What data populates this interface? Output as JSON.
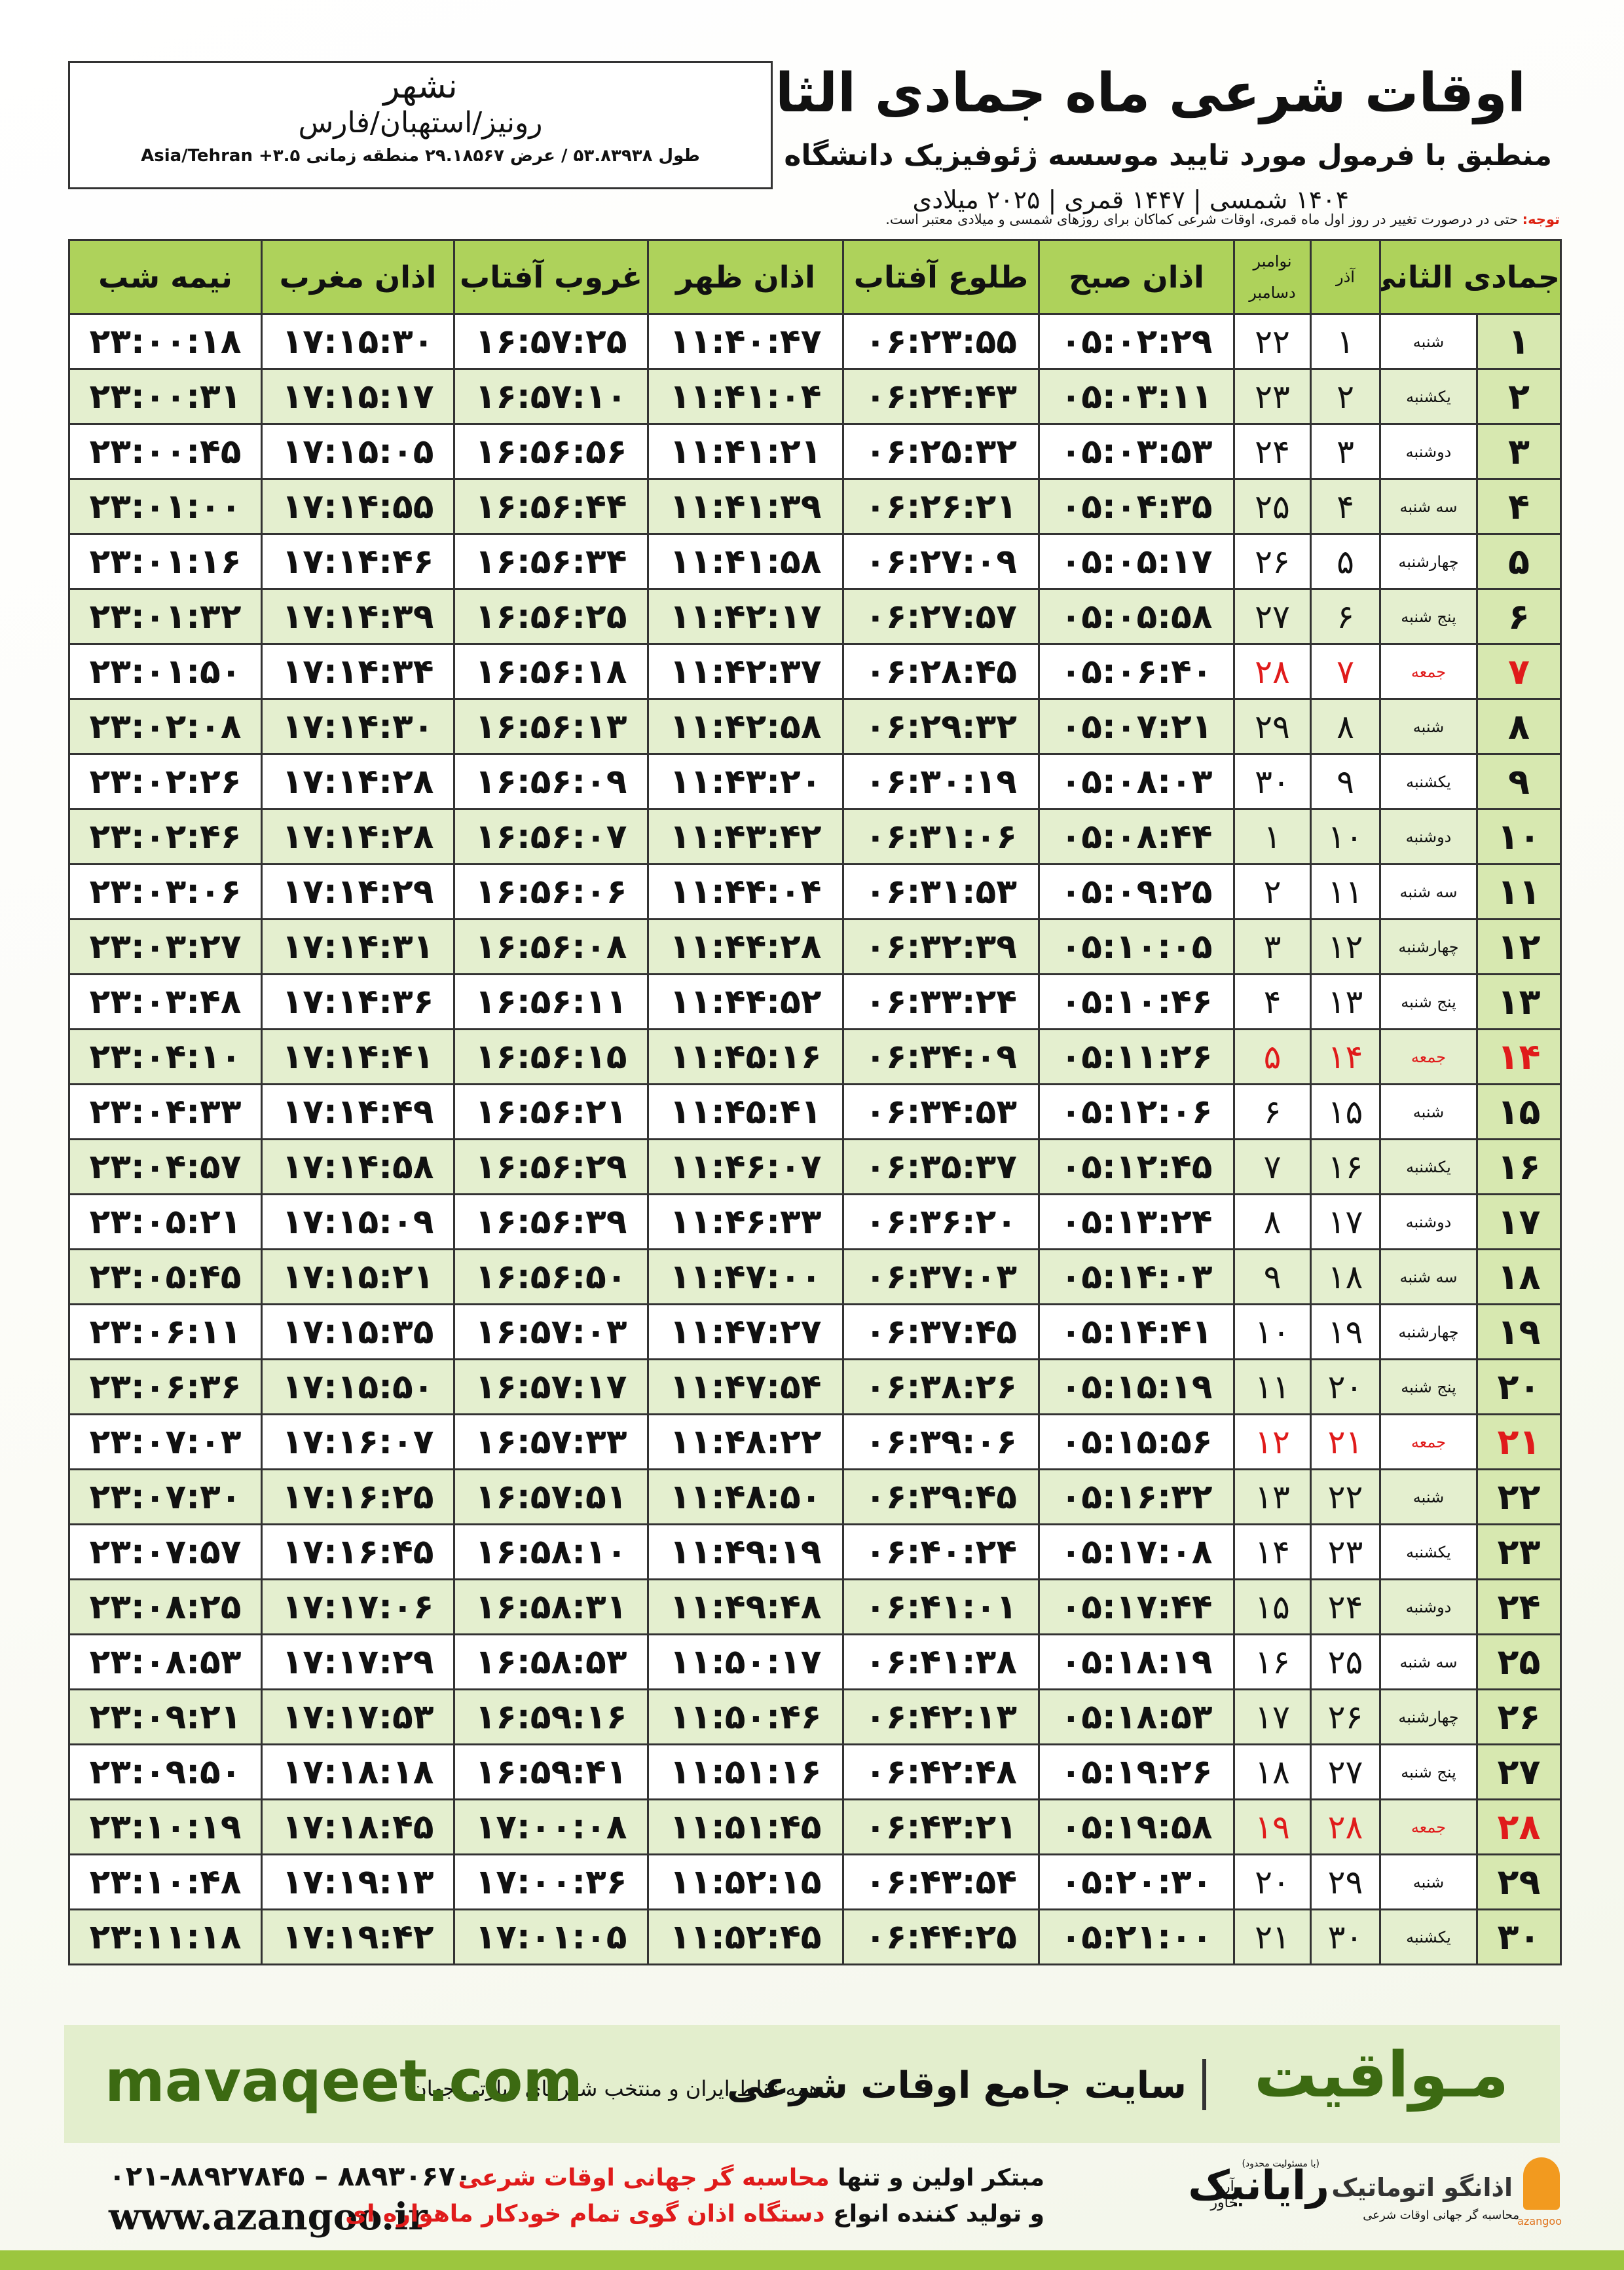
{
  "header": {
    "title": "اوقات شرعی ماه جمادی الثانی",
    "subtitle": "منطبق با فرمول مورد تایید موسسه ژئوفیزیک دانشگاه تهران",
    "dates": "۱۴۰۴ شمسی | ۱۴۴۷ قمری | ۲۰۲۵ میلادی"
  },
  "location": {
    "city": "نشهر",
    "region": "رونیز/استهبان/فارس",
    "coords": "طول ۵۳.۸۳۹۳۸ / عرض ۲۹.۱۸۵۶۷ منطقه زمانی ۳.۵+ Asia/Tehran"
  },
  "note": {
    "label": "توجه:",
    "text": "حتی در درصورت تغییر در روز اول ماه قمری، اوقات شرعی کماکان برای روزهای شمسی و میلادی معتبر است."
  },
  "table": {
    "headers": {
      "hijri": "جمادی الثانی",
      "shamsi": "آذر",
      "gregorian": [
        "نوامبر",
        "دسامبر"
      ],
      "times": [
        "اذان صبح",
        "طلوع آفتاب",
        "اذان ظهر",
        "غروب آفتاب",
        "اذان مغرب",
        "نیمه شب"
      ]
    },
    "rows": [
      [
        "۱",
        "شنبه",
        "۱",
        "۲۲",
        "۰۵:۰۲:۲۹",
        "۰۶:۲۳:۵۵",
        "۱۱:۴۰:۴۷",
        "۱۶:۵۷:۲۵",
        "۱۷:۱۵:۳۰",
        "۲۳:۰۰:۱۸"
      ],
      [
        "۲",
        "یکشنبه",
        "۲",
        "۲۳",
        "۰۵:۰۳:۱۱",
        "۰۶:۲۴:۴۳",
        "۱۱:۴۱:۰۴",
        "۱۶:۵۷:۱۰",
        "۱۷:۱۵:۱۷",
        "۲۳:۰۰:۳۱"
      ],
      [
        "۳",
        "دوشنبه",
        "۳",
        "۲۴",
        "۰۵:۰۳:۵۳",
        "۰۶:۲۵:۳۲",
        "۱۱:۴۱:۲۱",
        "۱۶:۵۶:۵۶",
        "۱۷:۱۵:۰۵",
        "۲۳:۰۰:۴۵"
      ],
      [
        "۴",
        "سه شنبه",
        "۴",
        "۲۵",
        "۰۵:۰۴:۳۵",
        "۰۶:۲۶:۲۱",
        "۱۱:۴۱:۳۹",
        "۱۶:۵۶:۴۴",
        "۱۷:۱۴:۵۵",
        "۲۳:۰۱:۰۰"
      ],
      [
        "۵",
        "چهارشنبه",
        "۵",
        "۲۶",
        "۰۵:۰۵:۱۷",
        "۰۶:۲۷:۰۹",
        "۱۱:۴۱:۵۸",
        "۱۶:۵۶:۳۴",
        "۱۷:۱۴:۴۶",
        "۲۳:۰۱:۱۶"
      ],
      [
        "۶",
        "پنج شنبه",
        "۶",
        "۲۷",
        "۰۵:۰۵:۵۸",
        "۰۶:۲۷:۵۷",
        "۱۱:۴۲:۱۷",
        "۱۶:۵۶:۲۵",
        "۱۷:۱۴:۳۹",
        "۲۳:۰۱:۳۲"
      ],
      [
        "۷",
        "جمعه",
        "۷",
        "۲۸",
        "۰۵:۰۶:۴۰",
        "۰۶:۲۸:۴۵",
        "۱۱:۴۲:۳۷",
        "۱۶:۵۶:۱۸",
        "۱۷:۱۴:۳۴",
        "۲۳:۰۱:۵۰"
      ],
      [
        "۸",
        "شنبه",
        "۸",
        "۲۹",
        "۰۵:۰۷:۲۱",
        "۰۶:۲۹:۳۲",
        "۱۱:۴۲:۵۸",
        "۱۶:۵۶:۱۳",
        "۱۷:۱۴:۳۰",
        "۲۳:۰۲:۰۸"
      ],
      [
        "۹",
        "یکشنبه",
        "۹",
        "۳۰",
        "۰۵:۰۸:۰۳",
        "۰۶:۳۰:۱۹",
        "۱۱:۴۳:۲۰",
        "۱۶:۵۶:۰۹",
        "۱۷:۱۴:۲۸",
        "۲۳:۰۲:۲۶"
      ],
      [
        "۱۰",
        "دوشنبه",
        "۱۰",
        "۱",
        "۰۵:۰۸:۴۴",
        "۰۶:۳۱:۰۶",
        "۱۱:۴۳:۴۲",
        "۱۶:۵۶:۰۷",
        "۱۷:۱۴:۲۸",
        "۲۳:۰۲:۴۶"
      ],
      [
        "۱۱",
        "سه شنبه",
        "۱۱",
        "۲",
        "۰۵:۰۹:۲۵",
        "۰۶:۳۱:۵۳",
        "۱۱:۴۴:۰۴",
        "۱۶:۵۶:۰۶",
        "۱۷:۱۴:۲۹",
        "۲۳:۰۳:۰۶"
      ],
      [
        "۱۲",
        "چهارشنبه",
        "۱۲",
        "۳",
        "۰۵:۱۰:۰۵",
        "۰۶:۳۲:۳۹",
        "۱۱:۴۴:۲۸",
        "۱۶:۵۶:۰۸",
        "۱۷:۱۴:۳۱",
        "۲۳:۰۳:۲۷"
      ],
      [
        "۱۳",
        "پنج شنبه",
        "۱۳",
        "۴",
        "۰۵:۱۰:۴۶",
        "۰۶:۳۳:۲۴",
        "۱۱:۴۴:۵۲",
        "۱۶:۵۶:۱۱",
        "۱۷:۱۴:۳۶",
        "۲۳:۰۳:۴۸"
      ],
      [
        "۱۴",
        "جمعه",
        "۱۴",
        "۵",
        "۰۵:۱۱:۲۶",
        "۰۶:۳۴:۰۹",
        "۱۱:۴۵:۱۶",
        "۱۶:۵۶:۱۵",
        "۱۷:۱۴:۴۱",
        "۲۳:۰۴:۱۰"
      ],
      [
        "۱۵",
        "شنبه",
        "۱۵",
        "۶",
        "۰۵:۱۲:۰۶",
        "۰۶:۳۴:۵۳",
        "۱۱:۴۵:۴۱",
        "۱۶:۵۶:۲۱",
        "۱۷:۱۴:۴۹",
        "۲۳:۰۴:۳۳"
      ],
      [
        "۱۶",
        "یکشنبه",
        "۱۶",
        "۷",
        "۰۵:۱۲:۴۵",
        "۰۶:۳۵:۳۷",
        "۱۱:۴۶:۰۷",
        "۱۶:۵۶:۲۹",
        "۱۷:۱۴:۵۸",
        "۲۳:۰۴:۵۷"
      ],
      [
        "۱۷",
        "دوشنبه",
        "۱۷",
        "۸",
        "۰۵:۱۳:۲۴",
        "۰۶:۳۶:۲۰",
        "۱۱:۴۶:۳۳",
        "۱۶:۵۶:۳۹",
        "۱۷:۱۵:۰۹",
        "۲۳:۰۵:۲۱"
      ],
      [
        "۱۸",
        "سه شنبه",
        "۱۸",
        "۹",
        "۰۵:۱۴:۰۳",
        "۰۶:۳۷:۰۳",
        "۱۱:۴۷:۰۰",
        "۱۶:۵۶:۵۰",
        "۱۷:۱۵:۲۱",
        "۲۳:۰۵:۴۵"
      ],
      [
        "۱۹",
        "چهارشنبه",
        "۱۹",
        "۱۰",
        "۰۵:۱۴:۴۱",
        "۰۶:۳۷:۴۵",
        "۱۱:۴۷:۲۷",
        "۱۶:۵۷:۰۳",
        "۱۷:۱۵:۳۵",
        "۲۳:۰۶:۱۱"
      ],
      [
        "۲۰",
        "پنج شنبه",
        "۲۰",
        "۱۱",
        "۰۵:۱۵:۱۹",
        "۰۶:۳۸:۲۶",
        "۱۱:۴۷:۵۴",
        "۱۶:۵۷:۱۷",
        "۱۷:۱۵:۵۰",
        "۲۳:۰۶:۳۶"
      ],
      [
        "۲۱",
        "جمعه",
        "۲۱",
        "۱۲",
        "۰۵:۱۵:۵۶",
        "۰۶:۳۹:۰۶",
        "۱۱:۴۸:۲۲",
        "۱۶:۵۷:۳۳",
        "۱۷:۱۶:۰۷",
        "۲۳:۰۷:۰۳"
      ],
      [
        "۲۲",
        "شنبه",
        "۲۲",
        "۱۳",
        "۰۵:۱۶:۳۲",
        "۰۶:۳۹:۴۵",
        "۱۱:۴۸:۵۰",
        "۱۶:۵۷:۵۱",
        "۱۷:۱۶:۲۵",
        "۲۳:۰۷:۳۰"
      ],
      [
        "۲۳",
        "یکشنبه",
        "۲۳",
        "۱۴",
        "۰۵:۱۷:۰۸",
        "۰۶:۴۰:۲۴",
        "۱۱:۴۹:۱۹",
        "۱۶:۵۸:۱۰",
        "۱۷:۱۶:۴۵",
        "۲۳:۰۷:۵۷"
      ],
      [
        "۲۴",
        "دوشنبه",
        "۲۴",
        "۱۵",
        "۰۵:۱۷:۴۴",
        "۰۶:۴۱:۰۱",
        "۱۱:۴۹:۴۸",
        "۱۶:۵۸:۳۱",
        "۱۷:۱۷:۰۶",
        "۲۳:۰۸:۲۵"
      ],
      [
        "۲۵",
        "سه شنبه",
        "۲۵",
        "۱۶",
        "۰۵:۱۸:۱۹",
        "۰۶:۴۱:۳۸",
        "۱۱:۵۰:۱۷",
        "۱۶:۵۸:۵۳",
        "۱۷:۱۷:۲۹",
        "۲۳:۰۸:۵۳"
      ],
      [
        "۲۶",
        "چهارشنبه",
        "۲۶",
        "۱۷",
        "۰۵:۱۸:۵۳",
        "۰۶:۴۲:۱۳",
        "۱۱:۵۰:۴۶",
        "۱۶:۵۹:۱۶",
        "۱۷:۱۷:۵۳",
        "۲۳:۰۹:۲۱"
      ],
      [
        "۲۷",
        "پنج شنبه",
        "۲۷",
        "۱۸",
        "۰۵:۱۹:۲۶",
        "۰۶:۴۲:۴۸",
        "۱۱:۵۱:۱۶",
        "۱۶:۵۹:۴۱",
        "۱۷:۱۸:۱۸",
        "۲۳:۰۹:۵۰"
      ],
      [
        "۲۸",
        "جمعه",
        "۲۸",
        "۱۹",
        "۰۵:۱۹:۵۸",
        "۰۶:۴۳:۲۱",
        "۱۱:۵۱:۴۵",
        "۱۷:۰۰:۰۸",
        "۱۷:۱۸:۴۵",
        "۲۳:۱۰:۱۹"
      ],
      [
        "۲۹",
        "شنبه",
        "۲۹",
        "۲۰",
        "۰۵:۲۰:۳۰",
        "۰۶:۴۳:۵۴",
        "۱۱:۵۲:۱۵",
        "۱۷:۰۰:۳۶",
        "۱۷:۱۹:۱۳",
        "۲۳:۱۰:۴۸"
      ],
      [
        "۳۰",
        "یکشنبه",
        "۳۰",
        "۲۱",
        "۰۵:۲۱:۰۰",
        "۰۶:۴۴:۲۵",
        "۱۱:۵۲:۴۵",
        "۱۷:۰۱:۰۵",
        "۱۷:۱۹:۴۲",
        "۲۳:۱۱:۱۸"
      ]
    ]
  },
  "banner": {
    "brand": "مـواقیت",
    "tagline": "سایت جامع اوقات شرعی",
    "sub": "همه نقاط ایران و منتخب شهرهای زیارتی جهان",
    "url": "mavaqeet.com"
  },
  "contact": {
    "phone": "۰۲۱-۸۸۹۲۷۸۴۵ – ۸۸۹۳۰۶۷۰",
    "web": "www.azangoo.ir",
    "line1": [
      "مبتکر اولین و تنها ",
      "محاسبه گر جهانی اوقات شرعی"
    ],
    "line2": [
      "و تولید کننده انواع ",
      "دستگاه اذان گوی تمام خودکار ماهواره ای"
    ],
    "logos": {
      "rayanik": "رایانیک",
      "rayanik_note": "(با مسئولیت محدود)",
      "aria": "آریا خاور",
      "azangoo": "اذانگو اتوماتیک",
      "azangoo_sub": "محاسبه گر جهانی اوقات شرعی",
      "azangoo_en": "azangoo"
    }
  }
}
